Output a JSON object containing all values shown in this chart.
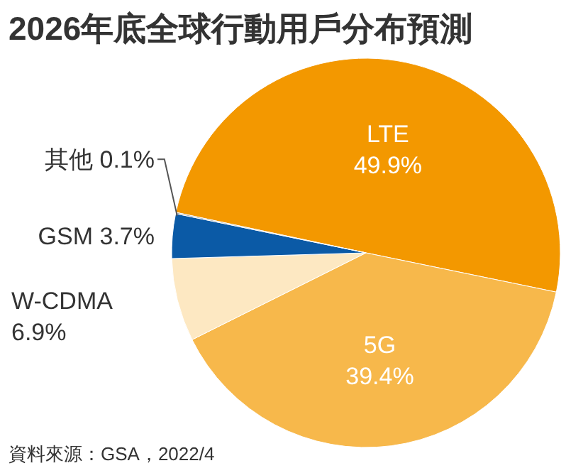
{
  "chart_data": {
    "type": "pie",
    "title": "2026年底全球行動用戶分布預測",
    "categories": [
      "LTE",
      "5G",
      "W-CDMA",
      "GSM",
      "其他"
    ],
    "values": [
      49.9,
      39.4,
      6.9,
      3.7,
      0.1
    ],
    "colors": [
      "#f39800",
      "#f7b84b",
      "#fde8c2",
      "#0b5aa6",
      "#9a9a9a"
    ],
    "value_labels": [
      "49.9%",
      "39.4%",
      "6.9%",
      "3.7%",
      "0.1%"
    ],
    "annotations": [
      "資料來源：GSA，2022/4"
    ]
  }
}
